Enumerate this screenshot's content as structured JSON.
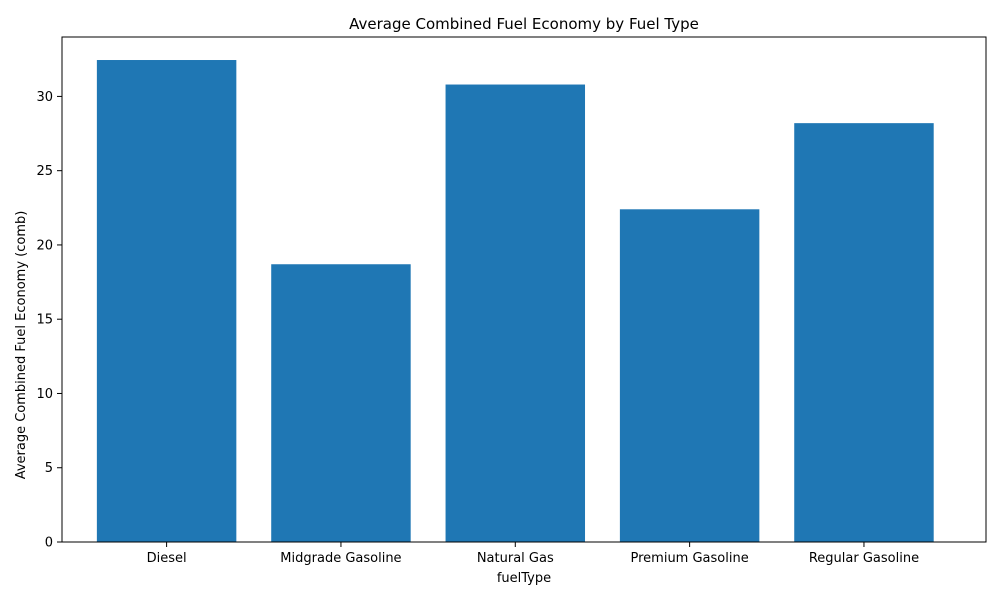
{
  "chart_data": {
    "type": "bar",
    "title": "Average Combined Fuel Economy by Fuel Type",
    "xlabel": "fuelType",
    "ylabel": "Average Combined Fuel Economy (comb)",
    "categories": [
      "Diesel",
      "Midgrade Gasoline",
      "Natural Gas",
      "Premium Gasoline",
      "Regular Gasoline"
    ],
    "values": [
      32.45,
      18.7,
      30.8,
      22.4,
      28.2
    ],
    "ylim": [
      0,
      34
    ],
    "yticks": [
      0,
      5,
      10,
      15,
      20,
      25,
      30
    ],
    "bar_color": "#1f77b4",
    "grid": false,
    "legend": "none"
  }
}
